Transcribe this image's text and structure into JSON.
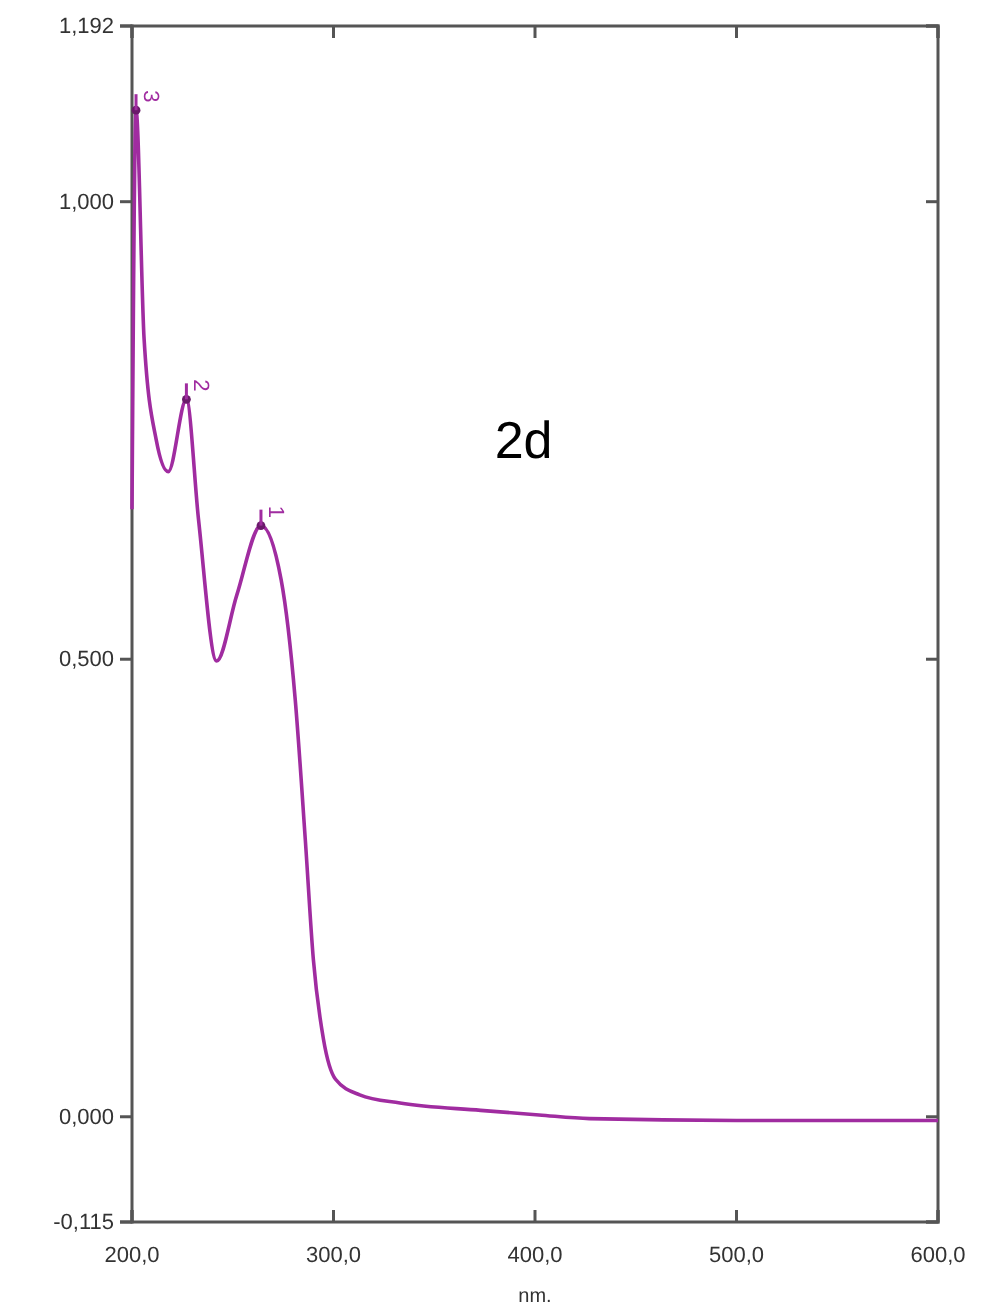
{
  "chart_data": {
    "type": "line",
    "xlabel": "nm.",
    "x": [
      200,
      202,
      206,
      212,
      218,
      227,
      233,
      242,
      252,
      264,
      274,
      281,
      286,
      290,
      295,
      301,
      313,
      333,
      373,
      402,
      427,
      500,
      600
    ],
    "series": [
      {
        "color": "#a02ca0",
        "values": [
          0.664,
          1.1,
          0.85,
          0.74,
          0.705,
          0.784,
          0.653,
          0.498,
          0.57,
          0.646,
          0.587,
          0.456,
          0.303,
          0.172,
          0.085,
          0.041,
          0.024,
          0.015,
          0.007,
          0.002,
          -0.002,
          -0.004,
          -0.004
        ]
      }
    ],
    "xlim": [
      200,
      600
    ],
    "xticks": [
      {
        "value": 200,
        "label": "200,0"
      },
      {
        "value": 300,
        "label": "300,0"
      },
      {
        "value": 400,
        "label": "400,0"
      },
      {
        "value": 500,
        "label": "500,0"
      },
      {
        "value": 600,
        "label": "600,0"
      }
    ],
    "ylim": [
      -0.115,
      1.192
    ],
    "yticks": [
      {
        "value": -0.115,
        "label": "-0,115"
      },
      {
        "value": 0,
        "label": "0,000"
      },
      {
        "value": 0.5,
        "label": "0,500"
      },
      {
        "value": 1,
        "label": "1,000"
      },
      {
        "value": 1.192,
        "label": "1,192"
      }
    ],
    "grid": false,
    "marker": "none",
    "line_style": "solid",
    "annotations": [
      {
        "text": "1",
        "x": 264,
        "y": 0.646
      },
      {
        "text": "2",
        "x": 227,
        "y": 0.784
      },
      {
        "text": "3",
        "x": 202,
        "y": 1.1
      },
      "2d"
    ]
  }
}
